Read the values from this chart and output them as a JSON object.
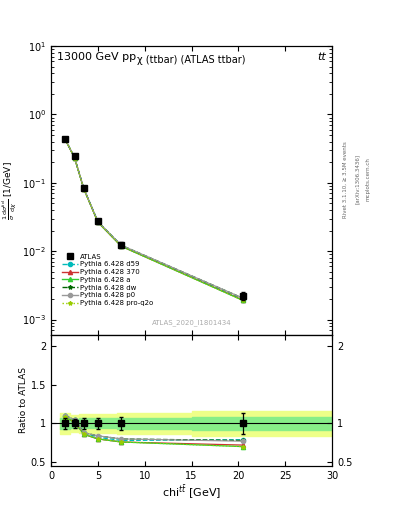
{
  "title_top": "13000 GeV pp",
  "title_right": "tt",
  "plot_title": "χ (ttbar) (ATLAS ttbar)",
  "watermark": "ATLAS_2020_I1801434",
  "rivet_text": "Rivet 3.1.10, ≥ 3.5M events",
  "arxiv_text": "[arXiv:1306.3436]",
  "mcplots_text": "mcplots.cern.ch",
  "x_data": [
    1.5,
    2.5,
    3.5,
    5.0,
    7.5,
    20.5
  ],
  "atlas_y": [
    0.44,
    0.245,
    0.085,
    0.028,
    0.0125,
    0.0022
  ],
  "atlas_yerr": [
    0.03,
    0.015,
    0.006,
    0.002,
    0.001,
    0.0003
  ],
  "p6_d59_y": [
    0.435,
    0.235,
    0.082,
    0.027,
    0.012,
    0.00195
  ],
  "p6_370_y": [
    0.432,
    0.233,
    0.081,
    0.0265,
    0.0118,
    0.00192
  ],
  "p6_a_y": [
    0.432,
    0.233,
    0.081,
    0.0265,
    0.0118,
    0.0019
  ],
  "p6_dw_y": [
    0.435,
    0.235,
    0.082,
    0.027,
    0.0122,
    0.00205
  ],
  "p6_p0_y": [
    0.435,
    0.235,
    0.082,
    0.027,
    0.0122,
    0.00205
  ],
  "p6_proq2o_y": [
    0.432,
    0.233,
    0.081,
    0.0265,
    0.0118,
    0.0019
  ],
  "ratio_d59": [
    1.1,
    1.05,
    0.88,
    0.82,
    0.78,
    0.79
  ],
  "ratio_370": [
    1.08,
    1.02,
    0.86,
    0.8,
    0.76,
    0.72
  ],
  "ratio_a": [
    1.08,
    1.02,
    0.86,
    0.8,
    0.76,
    0.7
  ],
  "ratio_dw": [
    1.1,
    1.05,
    0.88,
    0.84,
    0.8,
    0.78
  ],
  "ratio_p0": [
    1.1,
    1.05,
    0.88,
    0.84,
    0.8,
    0.77
  ],
  "ratio_proq2o": [
    1.08,
    1.02,
    0.86,
    0.8,
    0.76,
    0.7
  ],
  "band_x": [
    1.0,
    2.0,
    3.0,
    7.0,
    15.0,
    30.0
  ],
  "band_inner": [
    0.07,
    0.06,
    0.065,
    0.075,
    0.08,
    0.08
  ],
  "band_outer": [
    0.13,
    0.11,
    0.12,
    0.14,
    0.16,
    0.16
  ],
  "color_d59": "#00bbbb",
  "color_370": "#cc3333",
  "color_a": "#33cc33",
  "color_dw": "#006600",
  "color_p0": "#999999",
  "color_proq2o": "#99cc00",
  "xlim": [
    0,
    30
  ],
  "ylim_main": [
    0.0006,
    10
  ],
  "ylim_ratio": [
    0.45,
    2.15
  ],
  "bg_inner_color": "#88ee88",
  "bg_outer_color": "#eeff88"
}
